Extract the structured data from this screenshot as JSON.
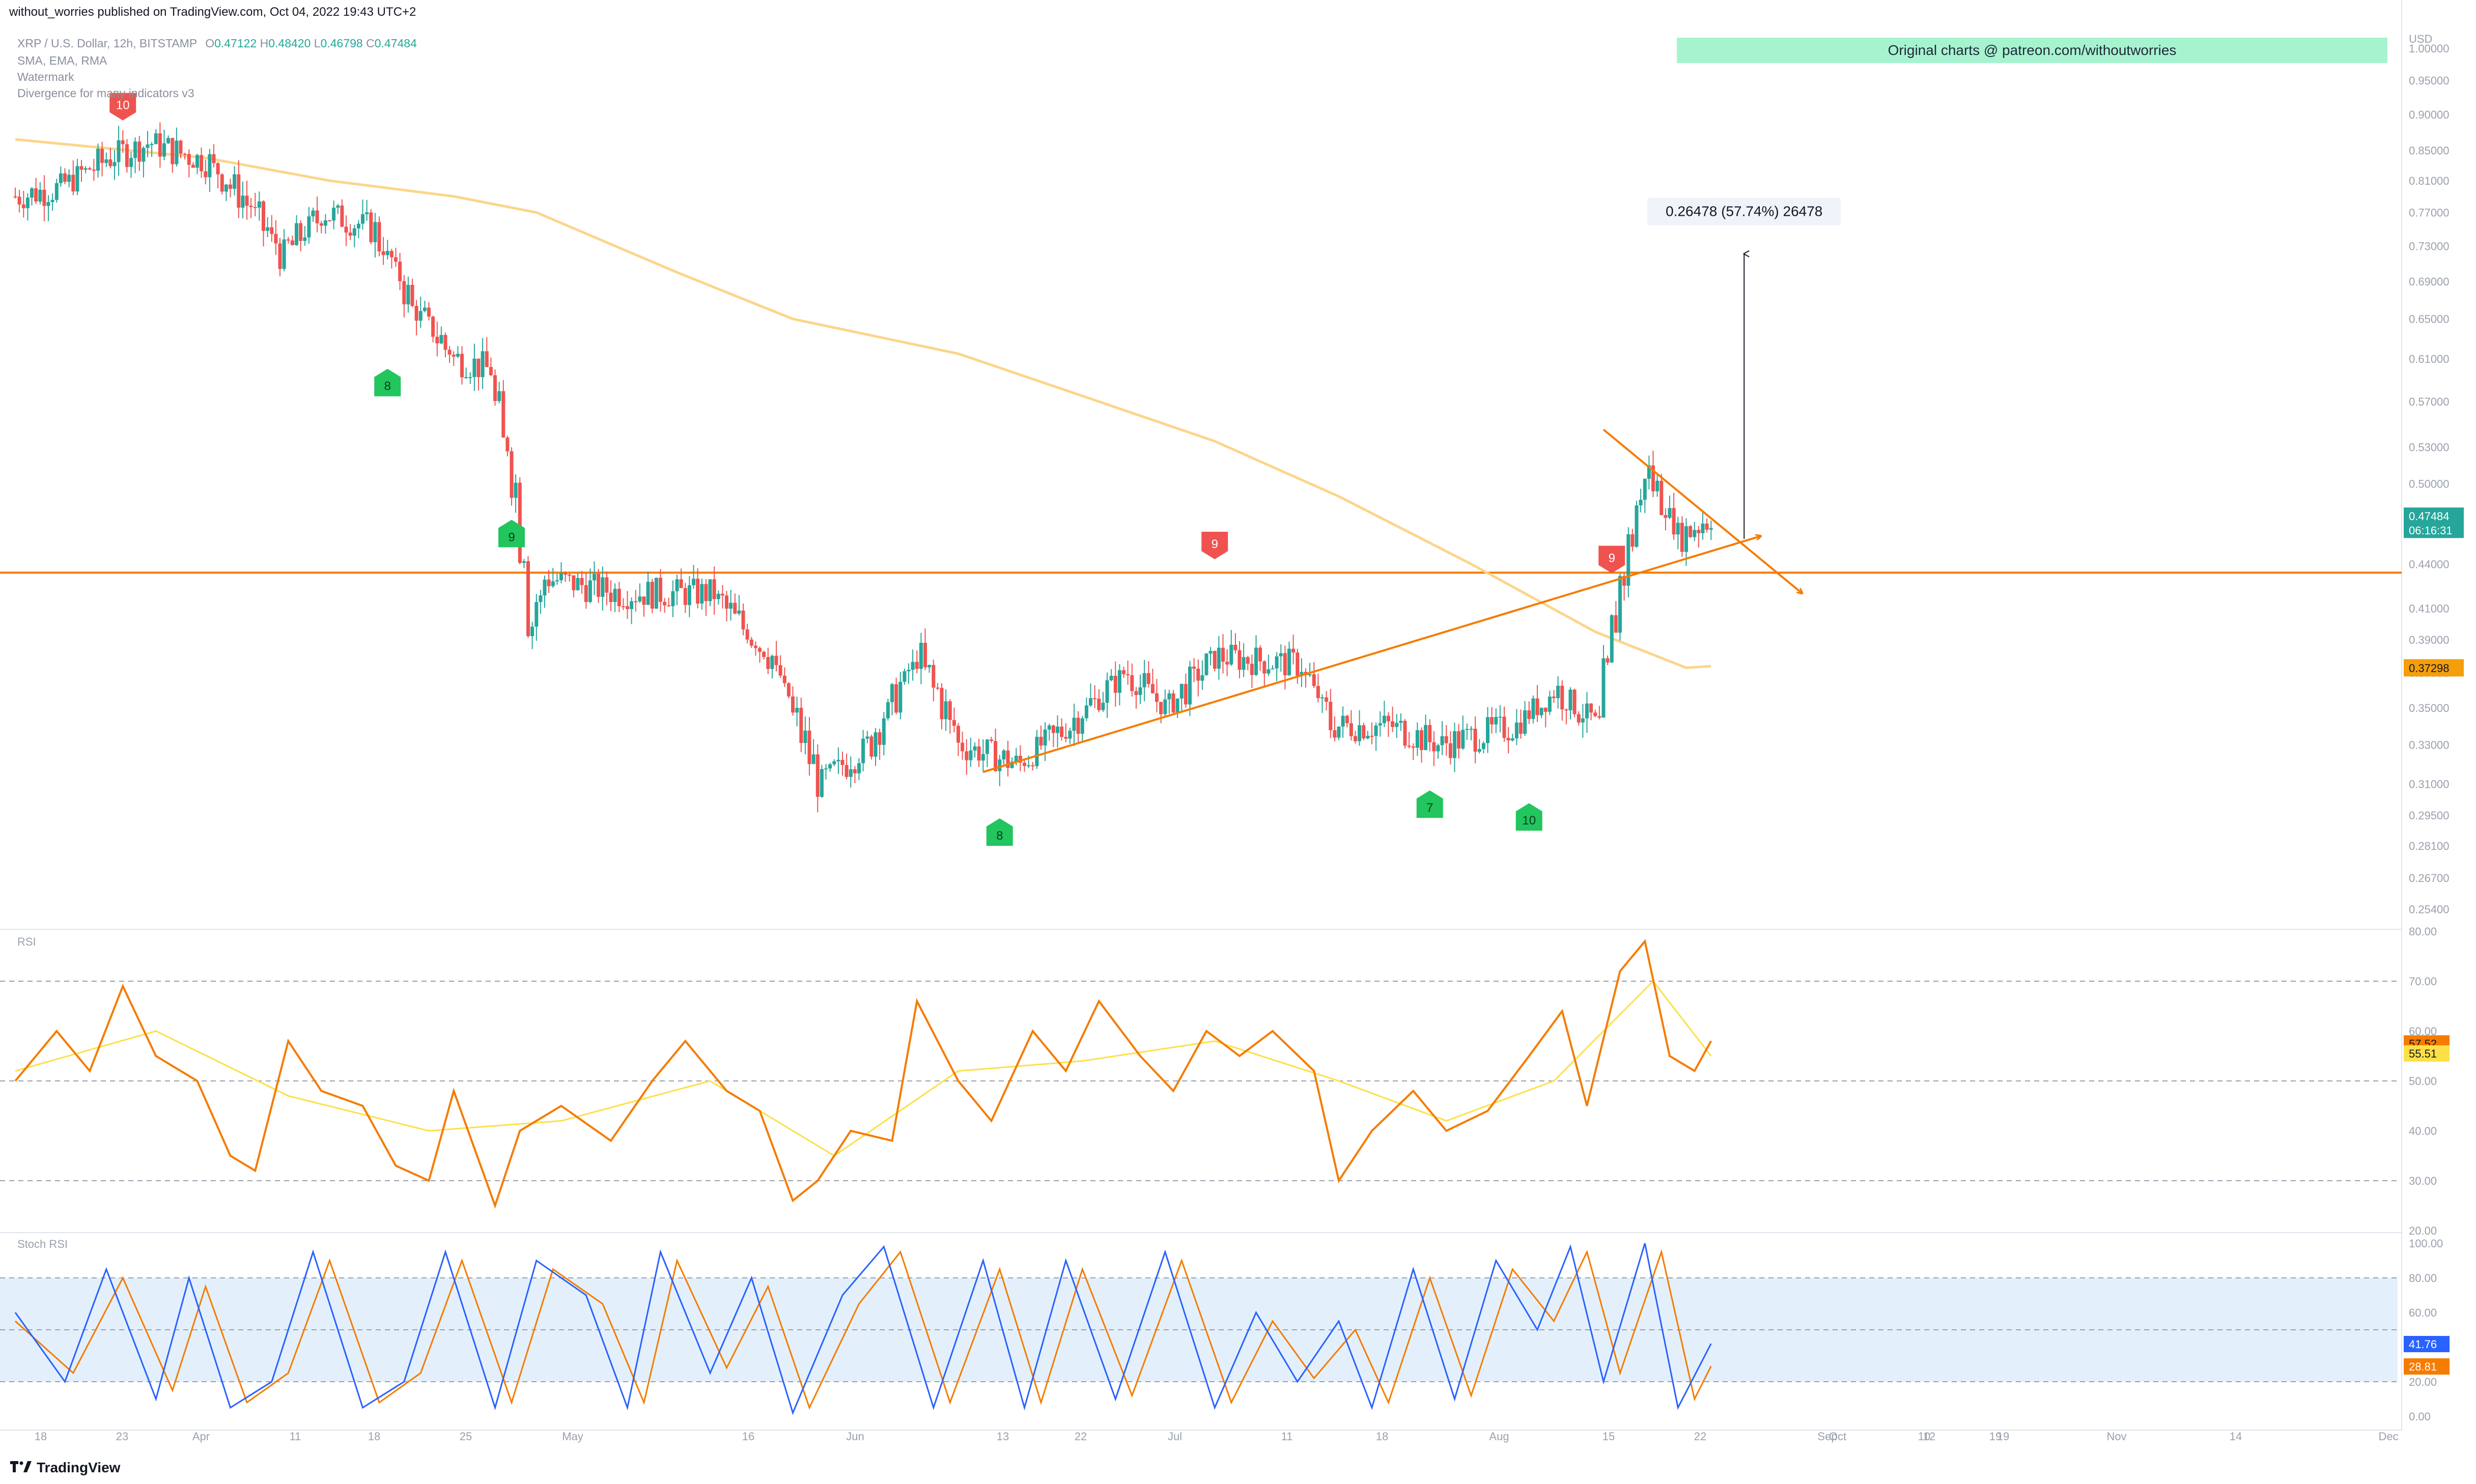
{
  "header": {
    "published": "without_worries published on TradingView.com, Oct 04, 2022 19:43 UTC+2",
    "symbol": "XRP / U.S. Dollar, 12h, BITSTAMP",
    "ohlc": {
      "o_label": "O",
      "o": "0.47122",
      "h_label": "H",
      "h": "0.48420",
      "l_label": "L",
      "l": "0.46798",
      "c_label": "C",
      "c": "0.47484"
    },
    "indicators": [
      "SMA, EMA, RMA",
      "Watermark",
      "Divergence for many indicators v3"
    ]
  },
  "banner": "Original charts @ patreon.com/withoutworries",
  "measure_label": "0.26478 (57.74%) 26478",
  "footer": {
    "brand": "TradingView",
    "logo": "tradingview-logo-icon"
  },
  "colors": {
    "up": "#26a69a",
    "down": "#ef5350",
    "trend": "#f57c00",
    "ma": "#fcd58a",
    "rsi": "#f57c00",
    "rsi_ma": "#fde047",
    "stoch_k": "#2962ff",
    "stoch_d": "#f57c00",
    "buy_marker": "#22c55e",
    "sell_marker": "#ef5350",
    "band": "#e3f0fc"
  },
  "chart_data": [
    {
      "type": "candlestick",
      "title": "XRP / U.S. Dollar, 12h, BITSTAMP",
      "ylabel": "USD",
      "yscale": "log",
      "ylim": [
        0.2468,
        1.0455
      ],
      "y_ticks": [
        "1.00000",
        "0.95000",
        "0.90000",
        "0.85000",
        "0.81000",
        "0.77000",
        "0.73000",
        "0.69000",
        "0.65000",
        "0.61000",
        "0.57000",
        "0.53000",
        "0.50000",
        "0.47000",
        "0.44000",
        "0.41000",
        "0.39000",
        "0.37000",
        "0.35000",
        "0.33000",
        "0.31000",
        "0.29500",
        "0.28100",
        "0.26700",
        "0.25400"
      ],
      "x_ticks": [
        "18",
        "23",
        "Apr",
        "11",
        "18",
        "25",
        "May",
        "16",
        "Jun",
        "13",
        "22",
        "Jul",
        "11",
        "18",
        "Aug",
        "15",
        "22",
        "Sep",
        "12",
        "19",
        "21",
        "Oct",
        "10",
        "19",
        "Nov",
        "14",
        "Dec"
      ],
      "price_labels": [
        {
          "value": "0.47484",
          "sub": "06:16:31",
          "color": "#26a69a"
        },
        {
          "value": "0.37298",
          "color": "#f59e0b"
        }
      ],
      "horizontal_level": 0.434,
      "moving_average_200": [
        {
          "date": "2022-03-13",
          "y": 0.865
        },
        {
          "date": "2022-04-05",
          "y": 0.84
        },
        {
          "date": "2022-04-20",
          "y": 0.81
        },
        {
          "date": "2022-05-05",
          "y": 0.79
        },
        {
          "date": "2022-05-15",
          "y": 0.77
        },
        {
          "date": "2022-06-01",
          "y": 0.7
        },
        {
          "date": "2022-06-15",
          "y": 0.65
        },
        {
          "date": "2022-07-05",
          "y": 0.615
        },
        {
          "date": "2022-07-20",
          "y": 0.575
        },
        {
          "date": "2022-08-05",
          "y": 0.535
        },
        {
          "date": "2022-08-20",
          "y": 0.49
        },
        {
          "date": "2022-09-05",
          "y": 0.44
        },
        {
          "date": "2022-09-20",
          "y": 0.395
        },
        {
          "date": "2022-10-01",
          "y": 0.373
        },
        {
          "date": "2022-10-04",
          "y": 0.374
        }
      ],
      "candles_anchor": [
        {
          "date": "2022-03-13",
          "y": 0.79
        },
        {
          "date": "2022-03-18",
          "y": 0.8
        },
        {
          "date": "2022-03-24",
          "y": 0.84
        },
        {
          "date": "2022-03-29",
          "y": 0.86
        },
        {
          "date": "2022-04-05",
          "y": 0.835
        },
        {
          "date": "2022-04-10",
          "y": 0.78
        },
        {
          "date": "2022-04-14",
          "y": 0.72
        },
        {
          "date": "2022-04-19",
          "y": 0.77
        },
        {
          "date": "2022-04-25",
          "y": 0.75
        },
        {
          "date": "2022-04-30",
          "y": 0.66
        },
        {
          "date": "2022-05-05",
          "y": 0.61
        },
        {
          "date": "2022-05-09",
          "y": 0.6
        },
        {
          "date": "2022-05-12",
          "y": 0.5
        },
        {
          "date": "2022-05-14",
          "y": 0.4
        },
        {
          "date": "2022-05-16",
          "y": 0.43
        },
        {
          "date": "2022-05-25",
          "y": 0.42
        },
        {
          "date": "2022-06-05",
          "y": 0.42
        },
        {
          "date": "2022-06-12",
          "y": 0.38
        },
        {
          "date": "2022-06-18",
          "y": 0.31
        },
        {
          "date": "2022-06-24",
          "y": 0.33
        },
        {
          "date": "2022-06-30",
          "y": 0.38
        },
        {
          "date": "2022-07-05",
          "y": 0.33
        },
        {
          "date": "2022-07-12",
          "y": 0.32
        },
        {
          "date": "2022-07-18",
          "y": 0.34
        },
        {
          "date": "2022-07-25",
          "y": 0.37
        },
        {
          "date": "2022-07-30",
          "y": 0.35
        },
        {
          "date": "2022-08-05",
          "y": 0.38
        },
        {
          "date": "2022-08-15",
          "y": 0.375
        },
        {
          "date": "2022-08-19",
          "y": 0.34
        },
        {
          "date": "2022-08-26",
          "y": 0.34
        },
        {
          "date": "2022-09-01",
          "y": 0.33
        },
        {
          "date": "2022-09-10",
          "y": 0.34
        },
        {
          "date": "2022-09-15",
          "y": 0.36
        },
        {
          "date": "2022-09-20",
          "y": 0.34
        },
        {
          "date": "2022-09-23",
          "y": 0.43
        },
        {
          "date": "2022-09-26",
          "y": 0.51
        },
        {
          "date": "2022-09-30",
          "y": 0.46
        },
        {
          "date": "2022-10-04",
          "y": 0.475
        }
      ],
      "trend_lines": [
        {
          "from": {
            "date": "2022-07-08",
            "y": 0.316
          },
          "to": {
            "date": "2022-10-10",
            "y": 0.46
          }
        },
        {
          "from": {
            "date": "2022-09-21",
            "y": 0.545
          },
          "to": {
            "date": "2022-10-15",
            "y": 0.42
          }
        }
      ],
      "measure": {
        "date": "2022-10-08",
        "from": 0.458,
        "to": 0.721
      },
      "markers": [
        {
          "label": "10",
          "kind": "sell",
          "date": "2022-03-26",
          "y": 0.915
        },
        {
          "label": "8",
          "kind": "buy",
          "date": "2022-04-27",
          "y": 0.585
        },
        {
          "label": "9",
          "kind": "buy",
          "date": "2022-05-12",
          "y": 0.46
        },
        {
          "label": "9",
          "kind": "sell",
          "date": "2022-08-05",
          "y": 0.455
        },
        {
          "label": "9",
          "kind": "sell",
          "date": "2022-09-22",
          "y": 0.445
        },
        {
          "label": "8",
          "kind": "buy",
          "date": "2022-07-10",
          "y": 0.286
        },
        {
          "label": "7",
          "kind": "buy",
          "date": "2022-08-31",
          "y": 0.299
        },
        {
          "label": "10",
          "kind": "buy",
          "date": "2022-09-12",
          "y": 0.293
        }
      ]
    },
    {
      "type": "line",
      "title": "RSI",
      "ylim": [
        20,
        80
      ],
      "y_ticks": [
        "80.00",
        "70.00",
        "60.00",
        "50.00",
        "40.00",
        "30.00",
        "20.00"
      ],
      "levels": [
        70,
        50,
        30
      ],
      "last_values": [
        {
          "value": "57.52",
          "color": "#f57c00"
        },
        {
          "value": "55.51",
          "color": "#fde047"
        }
      ],
      "rsi": [
        {
          "date": "2022-03-13",
          "y": 50
        },
        {
          "date": "2022-03-18",
          "y": 60
        },
        {
          "date": "2022-03-22",
          "y": 52
        },
        {
          "date": "2022-03-26",
          "y": 69
        },
        {
          "date": "2022-03-30",
          "y": 55
        },
        {
          "date": "2022-04-04",
          "y": 50
        },
        {
          "date": "2022-04-08",
          "y": 35
        },
        {
          "date": "2022-04-11",
          "y": 32
        },
        {
          "date": "2022-04-15",
          "y": 58
        },
        {
          "date": "2022-04-19",
          "y": 48
        },
        {
          "date": "2022-04-24",
          "y": 45
        },
        {
          "date": "2022-04-28",
          "y": 33
        },
        {
          "date": "2022-05-02",
          "y": 30
        },
        {
          "date": "2022-05-05",
          "y": 48
        },
        {
          "date": "2022-05-10",
          "y": 25
        },
        {
          "date": "2022-05-13",
          "y": 40
        },
        {
          "date": "2022-05-18",
          "y": 45
        },
        {
          "date": "2022-05-24",
          "y": 38
        },
        {
          "date": "2022-05-29",
          "y": 50
        },
        {
          "date": "2022-06-02",
          "y": 58
        },
        {
          "date": "2022-06-07",
          "y": 48
        },
        {
          "date": "2022-06-11",
          "y": 44
        },
        {
          "date": "2022-06-15",
          "y": 26
        },
        {
          "date": "2022-06-18",
          "y": 30
        },
        {
          "date": "2022-06-22",
          "y": 40
        },
        {
          "date": "2022-06-27",
          "y": 38
        },
        {
          "date": "2022-06-30",
          "y": 66
        },
        {
          "date": "2022-07-05",
          "y": 50
        },
        {
          "date": "2022-07-09",
          "y": 42
        },
        {
          "date": "2022-07-14",
          "y": 60
        },
        {
          "date": "2022-07-18",
          "y": 52
        },
        {
          "date": "2022-07-22",
          "y": 66
        },
        {
          "date": "2022-07-27",
          "y": 55
        },
        {
          "date": "2022-07-31",
          "y": 48
        },
        {
          "date": "2022-08-04",
          "y": 60
        },
        {
          "date": "2022-08-08",
          "y": 55
        },
        {
          "date": "2022-08-12",
          "y": 60
        },
        {
          "date": "2022-08-17",
          "y": 52
        },
        {
          "date": "2022-08-20",
          "y": 30
        },
        {
          "date": "2022-08-24",
          "y": 40
        },
        {
          "date": "2022-08-29",
          "y": 48
        },
        {
          "date": "2022-09-02",
          "y": 40
        },
        {
          "date": "2022-09-07",
          "y": 44
        },
        {
          "date": "2022-09-12",
          "y": 55
        },
        {
          "date": "2022-09-16",
          "y": 64
        },
        {
          "date": "2022-09-19",
          "y": 45
        },
        {
          "date": "2022-09-23",
          "y": 72
        },
        {
          "date": "2022-09-26",
          "y": 78
        },
        {
          "date": "2022-09-29",
          "y": 55
        },
        {
          "date": "2022-10-02",
          "y": 52
        },
        {
          "date": "2022-10-04",
          "y": 58
        }
      ],
      "rsi_ma": [
        {
          "date": "2022-03-13",
          "y": 52
        },
        {
          "date": "2022-03-30",
          "y": 60
        },
        {
          "date": "2022-04-15",
          "y": 47
        },
        {
          "date": "2022-05-02",
          "y": 40
        },
        {
          "date": "2022-05-18",
          "y": 42
        },
        {
          "date": "2022-06-05",
          "y": 50
        },
        {
          "date": "2022-06-20",
          "y": 35
        },
        {
          "date": "2022-07-05",
          "y": 52
        },
        {
          "date": "2022-07-20",
          "y": 54
        },
        {
          "date": "2022-08-05",
          "y": 58
        },
        {
          "date": "2022-08-20",
          "y": 50
        },
        {
          "date": "2022-09-02",
          "y": 42
        },
        {
          "date": "2022-09-15",
          "y": 50
        },
        {
          "date": "2022-09-27",
          "y": 70
        },
        {
          "date": "2022-10-04",
          "y": 55
        }
      ]
    },
    {
      "type": "line",
      "title": "Stoch RSI",
      "ylim": [
        -5,
        105
      ],
      "y_ticks": [
        "100.00",
        "80.00",
        "60.00",
        "40.00",
        "20.00",
        "0.00"
      ],
      "levels": [
        80,
        50,
        20
      ],
      "last_values": [
        {
          "value": "41.76",
          "color": "#2962ff"
        },
        {
          "value": "28.81",
          "color": "#f57c00"
        }
      ],
      "k": [
        {
          "date": "2022-03-13",
          "y": 60
        },
        {
          "date": "2022-03-19",
          "y": 20
        },
        {
          "date": "2022-03-24",
          "y": 85
        },
        {
          "date": "2022-03-30",
          "y": 10
        },
        {
          "date": "2022-04-03",
          "y": 80
        },
        {
          "date": "2022-04-08",
          "y": 5
        },
        {
          "date": "2022-04-13",
          "y": 20
        },
        {
          "date": "2022-04-18",
          "y": 95
        },
        {
          "date": "2022-04-24",
          "y": 5
        },
        {
          "date": "2022-04-29",
          "y": 20
        },
        {
          "date": "2022-05-04",
          "y": 95
        },
        {
          "date": "2022-05-10",
          "y": 5
        },
        {
          "date": "2022-05-15",
          "y": 90
        },
        {
          "date": "2022-05-21",
          "y": 70
        },
        {
          "date": "2022-05-26",
          "y": 5
        },
        {
          "date": "2022-05-30",
          "y": 95
        },
        {
          "date": "2022-06-05",
          "y": 25
        },
        {
          "date": "2022-06-10",
          "y": 80
        },
        {
          "date": "2022-06-15",
          "y": 2
        },
        {
          "date": "2022-06-21",
          "y": 70
        },
        {
          "date": "2022-06-26",
          "y": 98
        },
        {
          "date": "2022-07-02",
          "y": 5
        },
        {
          "date": "2022-07-08",
          "y": 90
        },
        {
          "date": "2022-07-13",
          "y": 5
        },
        {
          "date": "2022-07-18",
          "y": 90
        },
        {
          "date": "2022-07-24",
          "y": 10
        },
        {
          "date": "2022-07-30",
          "y": 95
        },
        {
          "date": "2022-08-05",
          "y": 5
        },
        {
          "date": "2022-08-10",
          "y": 60
        },
        {
          "date": "2022-08-15",
          "y": 20
        },
        {
          "date": "2022-08-20",
          "y": 55
        },
        {
          "date": "2022-08-24",
          "y": 5
        },
        {
          "date": "2022-08-29",
          "y": 85
        },
        {
          "date": "2022-09-03",
          "y": 10
        },
        {
          "date": "2022-09-08",
          "y": 90
        },
        {
          "date": "2022-09-13",
          "y": 50
        },
        {
          "date": "2022-09-17",
          "y": 98
        },
        {
          "date": "2022-09-21",
          "y": 20
        },
        {
          "date": "2022-09-26",
          "y": 100
        },
        {
          "date": "2022-09-30",
          "y": 5
        },
        {
          "date": "2022-10-04",
          "y": 42
        }
      ],
      "d": [
        {
          "date": "2022-03-13",
          "y": 55
        },
        {
          "date": "2022-03-20",
          "y": 25
        },
        {
          "date": "2022-03-26",
          "y": 80
        },
        {
          "date": "2022-04-01",
          "y": 15
        },
        {
          "date": "2022-04-05",
          "y": 75
        },
        {
          "date": "2022-04-10",
          "y": 8
        },
        {
          "date": "2022-04-15",
          "y": 25
        },
        {
          "date": "2022-04-20",
          "y": 90
        },
        {
          "date": "2022-04-26",
          "y": 8
        },
        {
          "date": "2022-05-01",
          "y": 25
        },
        {
          "date": "2022-05-06",
          "y": 90
        },
        {
          "date": "2022-05-12",
          "y": 8
        },
        {
          "date": "2022-05-17",
          "y": 85
        },
        {
          "date": "2022-05-23",
          "y": 65
        },
        {
          "date": "2022-05-28",
          "y": 8
        },
        {
          "date": "2022-06-01",
          "y": 90
        },
        {
          "date": "2022-06-07",
          "y": 28
        },
        {
          "date": "2022-06-12",
          "y": 75
        },
        {
          "date": "2022-06-17",
          "y": 5
        },
        {
          "date": "2022-06-23",
          "y": 65
        },
        {
          "date": "2022-06-28",
          "y": 95
        },
        {
          "date": "2022-07-04",
          "y": 8
        },
        {
          "date": "2022-07-10",
          "y": 85
        },
        {
          "date": "2022-07-15",
          "y": 8
        },
        {
          "date": "2022-07-20",
          "y": 85
        },
        {
          "date": "2022-07-26",
          "y": 12
        },
        {
          "date": "2022-08-01",
          "y": 90
        },
        {
          "date": "2022-08-07",
          "y": 8
        },
        {
          "date": "2022-08-12",
          "y": 55
        },
        {
          "date": "2022-08-17",
          "y": 22
        },
        {
          "date": "2022-08-22",
          "y": 50
        },
        {
          "date": "2022-08-26",
          "y": 8
        },
        {
          "date": "2022-08-31",
          "y": 80
        },
        {
          "date": "2022-09-05",
          "y": 12
        },
        {
          "date": "2022-09-10",
          "y": 85
        },
        {
          "date": "2022-09-15",
          "y": 55
        },
        {
          "date": "2022-09-19",
          "y": 95
        },
        {
          "date": "2022-09-23",
          "y": 25
        },
        {
          "date": "2022-09-28",
          "y": 95
        },
        {
          "date": "2022-10-02",
          "y": 10
        },
        {
          "date": "2022-10-04",
          "y": 29
        }
      ]
    }
  ]
}
